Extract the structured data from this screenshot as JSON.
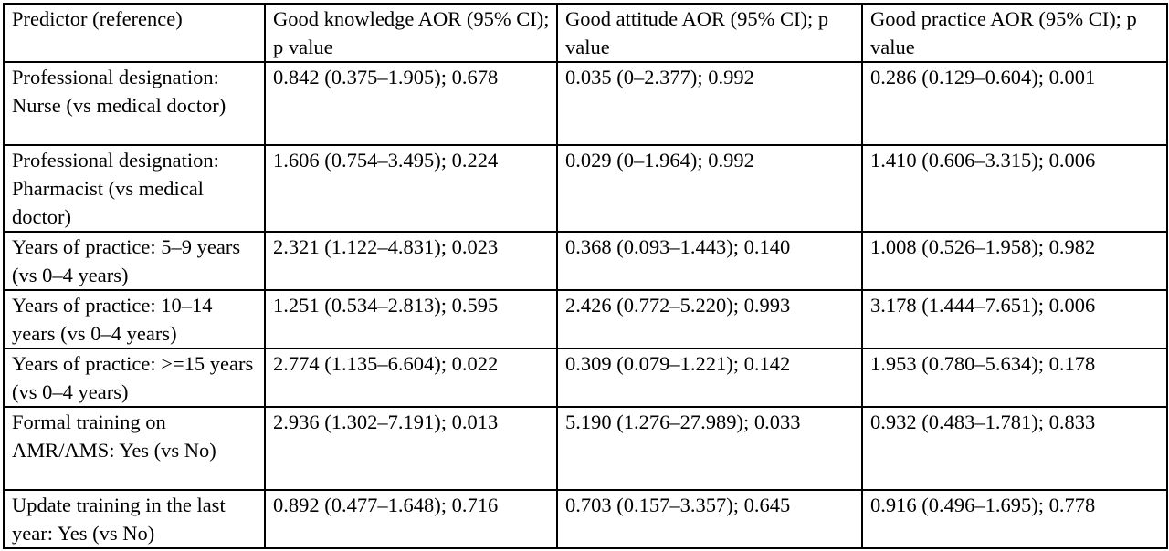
{
  "table": {
    "headers": [
      "Predictor (reference)",
      "Good knowledge AOR (95% CI); p value",
      "Good attitude AOR (95% CI); p value",
      "Good practice AOR (95% CI); p value"
    ],
    "rows": [
      {
        "predictor": "Professional designation: Nurse (vs medical doctor)",
        "knowledge": "0.842 (0.375–1.905); 0.678",
        "attitude": "0.035 (0–2.377); 0.992",
        "practice": "0.286 (0.129–0.604); 0.001"
      },
      {
        "predictor": "Professional designation: Pharmacist (vs medical doctor)",
        "knowledge": "1.606 (0.754–3.495); 0.224",
        "attitude": "0.029 (0–1.964); 0.992",
        "practice": "1.410 (0.606–3.315); 0.006"
      },
      {
        "predictor": "Years of practice: 5–9 years (vs 0–4 years)",
        "knowledge": "2.321 (1.122–4.831); 0.023",
        "attitude": "0.368 (0.093–1.443); 0.140",
        "practice": "1.008 (0.526–1.958); 0.982"
      },
      {
        "predictor": "Years of practice: 10–14 years (vs 0–4 years)",
        "knowledge": "1.251 (0.534–2.813); 0.595",
        "attitude": "2.426 (0.772–5.220); 0.993",
        "practice": "3.178 (1.444–7.651); 0.006"
      },
      {
        "predictor": "Years of practice: >=15 years (vs 0–4 years)",
        "knowledge": "2.774 (1.135–6.604); 0.022",
        "attitude": "0.309 (0.079–1.221); 0.142",
        "practice": "1.953 (0.780–5.634); 0.178"
      },
      {
        "predictor": "Formal training on AMR/AMS: Yes (vs No)",
        "knowledge": "2.936 (1.302–7.191); 0.013",
        "attitude": "5.190 (1.276–27.989); 0.033",
        "practice": "0.932 (0.483–1.781); 0.833"
      },
      {
        "predictor": "Update training in the last year: Yes (vs No)",
        "knowledge": "0.892 (0.477–1.648); 0.716",
        "attitude": "0.703 (0.157–3.357); 0.645",
        "practice": "0.916 (0.496–1.695); 0.778"
      }
    ]
  }
}
